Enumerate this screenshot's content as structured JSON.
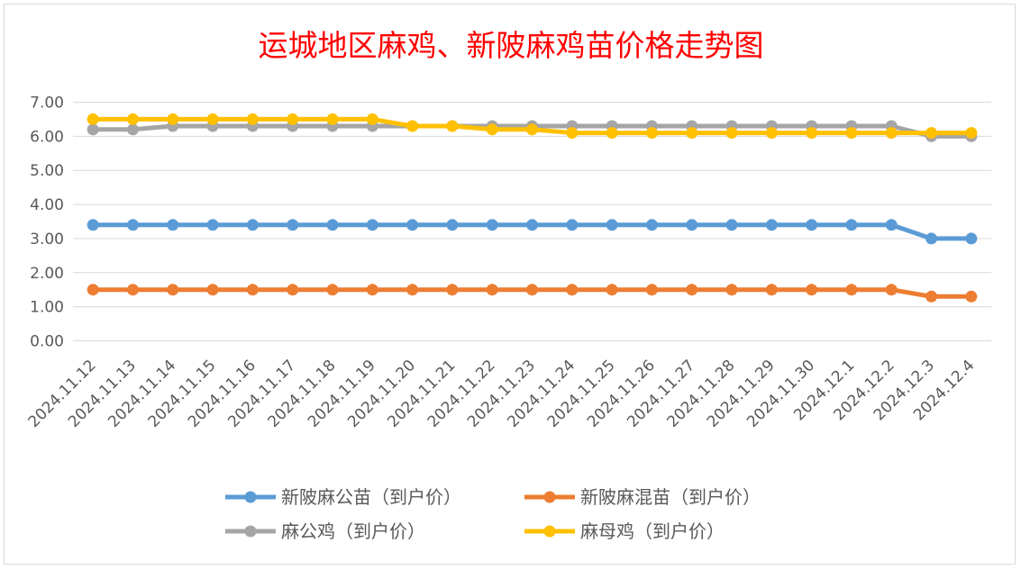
{
  "chart_data": {
    "type": "line",
    "title": "运城地区麻鸡、新陂麻鸡苗价格走势图",
    "xlabel": "",
    "ylabel": "",
    "ylim": [
      0,
      7
    ],
    "y_ticks": [
      "0.00",
      "1.00",
      "2.00",
      "3.00",
      "4.00",
      "5.00",
      "6.00",
      "7.00"
    ],
    "grid": true,
    "legend_position": "bottom",
    "categories": [
      "2024.11.12",
      "2024.11.13",
      "2024.11.14",
      "2024.11.15",
      "2024.11.16",
      "2024.11.17",
      "2024.11.18",
      "2024.11.19",
      "2024.11.20",
      "2024.11.21",
      "2024.11.22",
      "2024.11.23",
      "2024.11.24",
      "2024.11.25",
      "2024.11.26",
      "2024.11.27",
      "2024.11.28",
      "2024.11.29",
      "2024.11.30",
      "2024.12.1",
      "2024.12.2",
      "2024.12.3",
      "2024.12.4"
    ],
    "series": [
      {
        "name": "新陂麻公苗（到户价）",
        "color": "#5b9bd5",
        "values": [
          3.4,
          3.4,
          3.4,
          3.4,
          3.4,
          3.4,
          3.4,
          3.4,
          3.4,
          3.4,
          3.4,
          3.4,
          3.4,
          3.4,
          3.4,
          3.4,
          3.4,
          3.4,
          3.4,
          3.4,
          3.4,
          3.0,
          3.0
        ]
      },
      {
        "name": "新陂麻混苗（到户价）",
        "color": "#ed7d31",
        "values": [
          1.5,
          1.5,
          1.5,
          1.5,
          1.5,
          1.5,
          1.5,
          1.5,
          1.5,
          1.5,
          1.5,
          1.5,
          1.5,
          1.5,
          1.5,
          1.5,
          1.5,
          1.5,
          1.5,
          1.5,
          1.5,
          1.3,
          1.3
        ]
      },
      {
        "name": "麻公鸡（到户价）",
        "color": "#a5a5a5",
        "values": [
          6.2,
          6.2,
          6.3,
          6.3,
          6.3,
          6.3,
          6.3,
          6.3,
          6.3,
          6.3,
          6.3,
          6.3,
          6.3,
          6.3,
          6.3,
          6.3,
          6.3,
          6.3,
          6.3,
          6.3,
          6.3,
          6.0,
          6.0
        ]
      },
      {
        "name": "麻母鸡（到户价）",
        "color": "#ffc000",
        "values": [
          6.5,
          6.5,
          6.5,
          6.5,
          6.5,
          6.5,
          6.5,
          6.5,
          6.3,
          6.3,
          6.2,
          6.2,
          6.1,
          6.1,
          6.1,
          6.1,
          6.1,
          6.1,
          6.1,
          6.1,
          6.1,
          6.1,
          6.1
        ]
      }
    ],
    "draw_order": [
      2,
      3,
      0,
      1
    ],
    "title_color": "#ff0000",
    "grid_color": "#d9d9d9",
    "axis_text_color": "#595959"
  }
}
